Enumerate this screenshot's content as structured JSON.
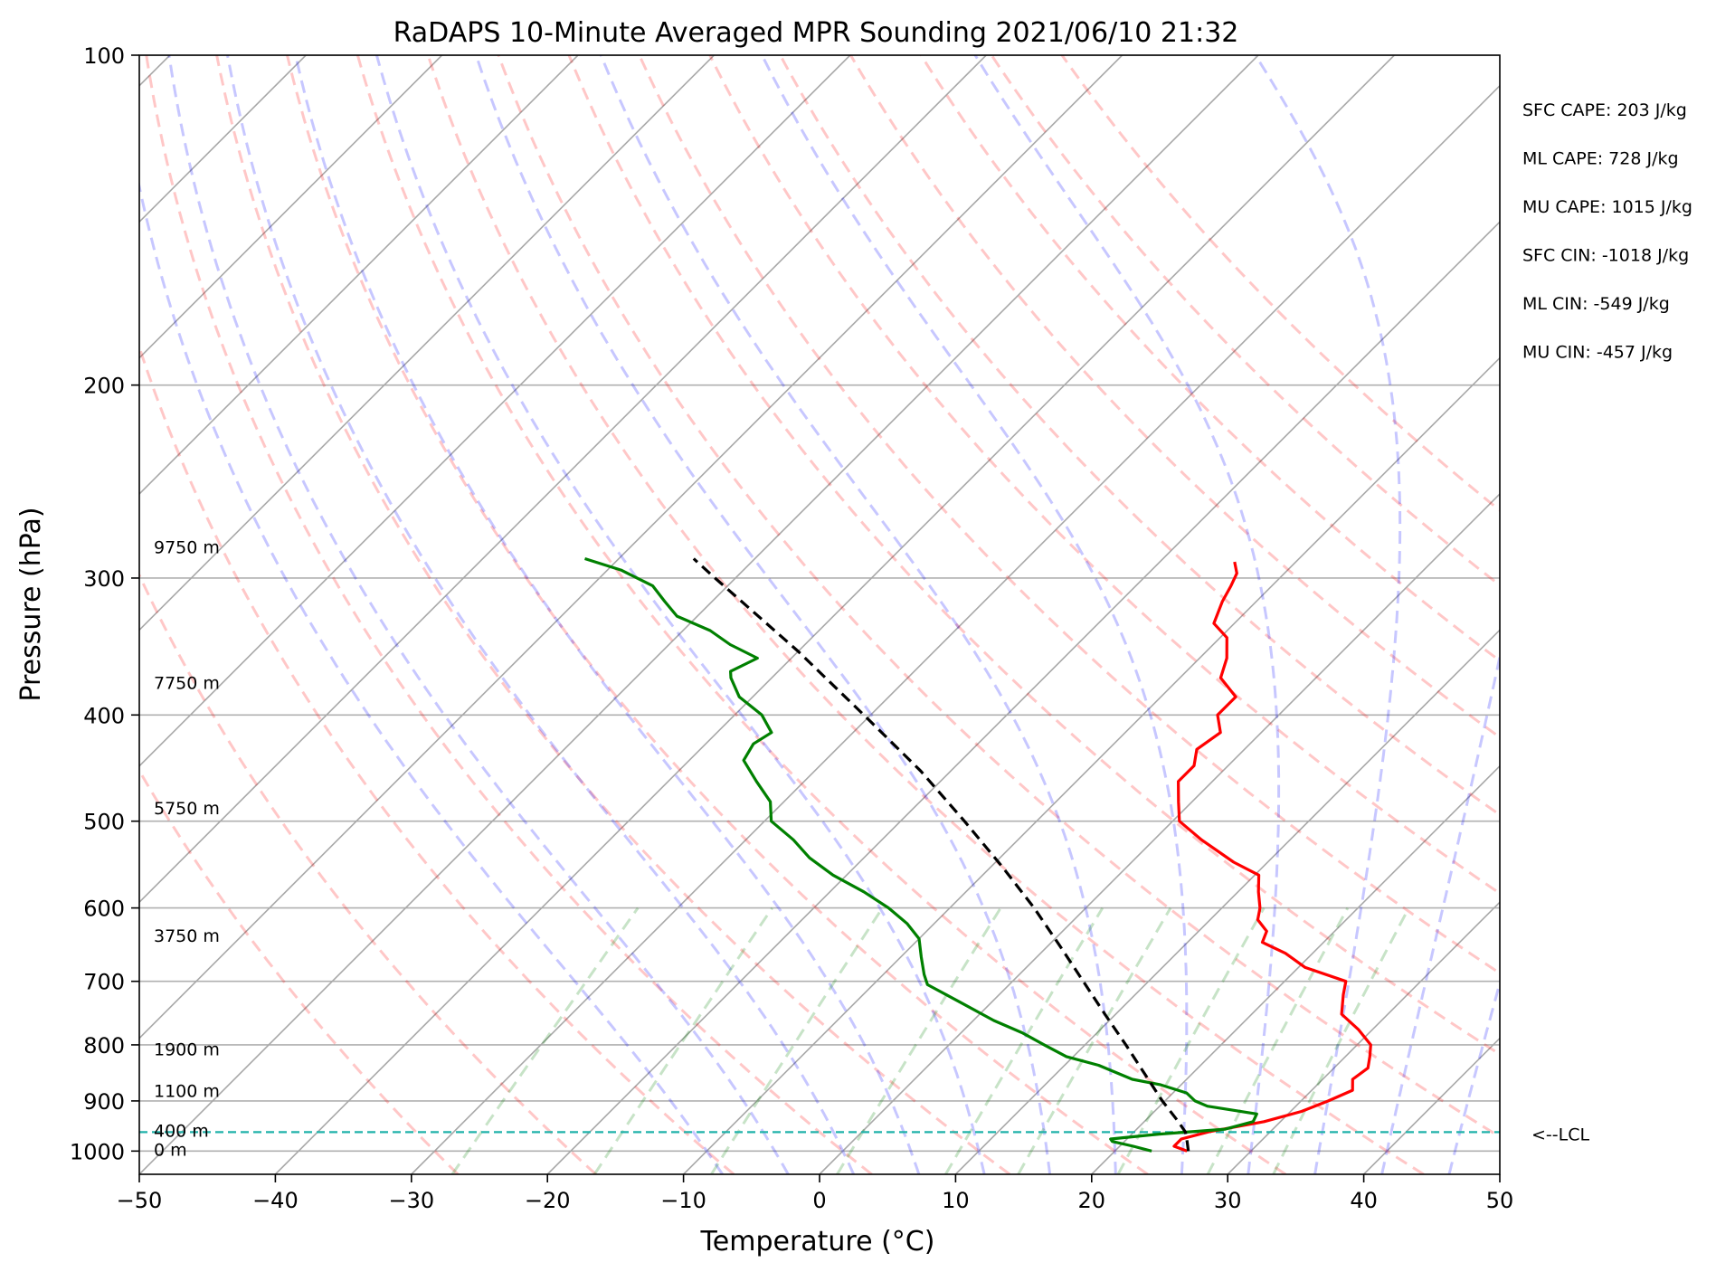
{
  "chart_data": {
    "type": "line",
    "title": "RaDAPS 10-Minute Averaged MPR Sounding 2021/06/10 21:32",
    "xlabel": "Temperature (°C)",
    "ylabel": "Pressure (hPa)",
    "xlim": [
      -50,
      50
    ],
    "ylim": [
      1050,
      100
    ],
    "y_scale": "log",
    "x_ticks": [
      -50,
      -40,
      -30,
      -20,
      -10,
      0,
      10,
      20,
      30,
      40,
      50
    ],
    "x_tick_labels": [
      "−50",
      "−40",
      "−30",
      "−20",
      "−10",
      "0",
      "10",
      "20",
      "30",
      "40",
      "50"
    ],
    "y_ticks": [
      100,
      200,
      300,
      400,
      500,
      600,
      700,
      800,
      900,
      1000
    ],
    "y_tick_labels": [
      "100",
      "200",
      "300",
      "400",
      "500",
      "600",
      "700",
      "800",
      "900",
      "1000"
    ],
    "grid": true,
    "skew": 1,
    "series": [
      {
        "color": "#ff0000",
        "points": [
          [
            1000,
            25.3
          ],
          [
            990,
            24.0
          ],
          [
            975,
            24.0
          ],
          [
            960,
            25.5
          ],
          [
            940,
            28.8
          ],
          [
            920,
            30.8
          ],
          [
            900,
            32.0
          ],
          [
            880,
            33.0
          ],
          [
            860,
            32.2
          ],
          [
            840,
            32.5
          ],
          [
            820,
            31.8
          ],
          [
            800,
            31.0
          ],
          [
            775,
            29.0
          ],
          [
            750,
            26.6
          ],
          [
            720,
            25.3
          ],
          [
            700,
            24.5
          ],
          [
            680,
            20.5
          ],
          [
            660,
            18.0
          ],
          [
            645,
            15.5
          ],
          [
            630,
            15.0
          ],
          [
            615,
            13.5
          ],
          [
            600,
            12.8
          ],
          [
            580,
            11.5
          ],
          [
            560,
            10.3
          ],
          [
            545,
            7.5
          ],
          [
            520,
            3.5
          ],
          [
            500,
            0.5
          ],
          [
            480,
            -1.0
          ],
          [
            460,
            -2.5
          ],
          [
            445,
            -2.5
          ],
          [
            430,
            -3.5
          ],
          [
            415,
            -3.0
          ],
          [
            400,
            -4.5
          ],
          [
            385,
            -4.5
          ],
          [
            370,
            -7.0
          ],
          [
            355,
            -8.0
          ],
          [
            340,
            -9.5
          ],
          [
            330,
            -11.5
          ],
          [
            315,
            -12.5
          ],
          [
            305,
            -13.0
          ],
          [
            297,
            -13.5
          ],
          [
            290,
            -14.5
          ]
        ]
      },
      {
        "color": "#008000",
        "points": [
          [
            1000,
            22.7
          ],
          [
            990,
            21.0
          ],
          [
            980,
            19.1
          ],
          [
            975,
            18.8
          ],
          [
            965,
            22.0
          ],
          [
            955,
            26.5
          ],
          [
            940,
            28.0
          ],
          [
            925,
            27.7
          ],
          [
            910,
            23.5
          ],
          [
            900,
            22.2
          ],
          [
            885,
            21.0
          ],
          [
            870,
            18.5
          ],
          [
            860,
            16.0
          ],
          [
            835,
            12.5
          ],
          [
            820,
            9.5
          ],
          [
            800,
            7.0
          ],
          [
            780,
            4.5
          ],
          [
            760,
            1.5
          ],
          [
            730,
            -2.5
          ],
          [
            705,
            -6.0
          ],
          [
            690,
            -7.0
          ],
          [
            665,
            -8.5
          ],
          [
            640,
            -10.0
          ],
          [
            620,
            -12.0
          ],
          [
            600,
            -14.5
          ],
          [
            580,
            -17.5
          ],
          [
            560,
            -21.0
          ],
          [
            540,
            -24.0
          ],
          [
            520,
            -26.5
          ],
          [
            500,
            -29.5
          ],
          [
            480,
            -31.0
          ],
          [
            460,
            -33.5
          ],
          [
            440,
            -36.0
          ],
          [
            425,
            -36.5
          ],
          [
            415,
            -36.0
          ],
          [
            400,
            -38.0
          ],
          [
            385,
            -41.0
          ],
          [
            370,
            -43.0
          ],
          [
            365,
            -43.5
          ],
          [
            355,
            -42.5
          ],
          [
            345,
            -45.5
          ],
          [
            335,
            -48.0
          ],
          [
            325,
            -51.5
          ],
          [
            315,
            -53.5
          ],
          [
            305,
            -55.5
          ],
          [
            295,
            -59.0
          ],
          [
            288,
            -62.5
          ]
        ]
      },
      {
        "color": "#000000",
        "dashed": true,
        "points": [
          [
            1000,
            25.4
          ],
          [
            980,
            24.6
          ],
          [
            961,
            23.8
          ],
          [
            940,
            22.5
          ],
          [
            900,
            19.8
          ],
          [
            850,
            16.5
          ],
          [
            800,
            13.0
          ],
          [
            750,
            9.2
          ],
          [
            700,
            5.2
          ],
          [
            650,
            0.9
          ],
          [
            600,
            -3.8
          ],
          [
            550,
            -9.2
          ],
          [
            500,
            -15.3
          ],
          [
            450,
            -22.2
          ],
          [
            400,
            -30.5
          ],
          [
            350,
            -40.0
          ],
          [
            300,
            -51.5
          ],
          [
            288,
            -54.5
          ]
        ]
      }
    ],
    "lcl_line": {
      "pressure": 961,
      "color": "#20b2aa",
      "label": "<--LCL"
    },
    "height_labels": [
      {
        "pressure": 1000,
        "label": "0 m"
      },
      {
        "pressure": 961,
        "label": "400 m"
      },
      {
        "pressure": 884,
        "label": "1100 m"
      },
      {
        "pressure": 810,
        "label": "1900 m"
      },
      {
        "pressure": 638,
        "label": "3750 m"
      },
      {
        "pressure": 488,
        "label": "5750 m"
      },
      {
        "pressure": 375,
        "label": "7750 m"
      },
      {
        "pressure": 282,
        "label": "9750 m"
      }
    ],
    "indices": [
      "SFC CAPE: 203 J/kg",
      "ML CAPE: 728 J/kg",
      "MU CAPE: 1015 J/kg",
      "SFC CIN: -1018 J/kg",
      "ML CIN: -549 J/kg",
      "MU CIN: -457 J/kg"
    ],
    "reference_lines": {
      "dry_adiabats": {
        "color": "#ff0000",
        "theta_c": [
          -30,
          -20,
          -10,
          0,
          10,
          20,
          30,
          40,
          50,
          60,
          70,
          80,
          90,
          100,
          110,
          120,
          130
        ]
      },
      "moist_adiabats": {
        "color": "#0000ff",
        "start_c": [
          -10,
          -5,
          0,
          5,
          10,
          15,
          20,
          25,
          30,
          35,
          40,
          45
        ]
      },
      "mixing_ratio_lines": {
        "color": "#008000",
        "g_per_kg": [
          0.4,
          1,
          2,
          4,
          7,
          10,
          16,
          24,
          32
        ]
      }
    }
  }
}
